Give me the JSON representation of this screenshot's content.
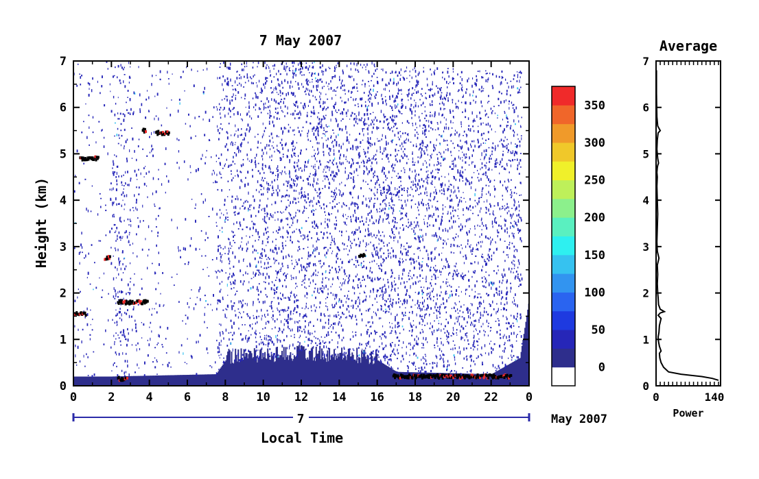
{
  "chart_data": [
    {
      "type": "heatmap",
      "title": "7 May 2007",
      "xlabel": "Local Time",
      "ylabel": "Height (km)",
      "x_ticks": [
        "0",
        "2",
        "4",
        "6",
        "8",
        "10",
        "12",
        "14",
        "16",
        "18",
        "20",
        "22",
        "0"
      ],
      "x_range_hours": [
        0,
        24
      ],
      "y_ticks": [
        "0",
        "1",
        "2",
        "3",
        "4",
        "5",
        "6",
        "7"
      ],
      "ylim": [
        0,
        7
      ],
      "day_label": "7",
      "month_label": "May 2007",
      "colorbar": {
        "ticks": [
          "0",
          "50",
          "100",
          "150",
          "200",
          "250",
          "300",
          "350"
        ],
        "range": [
          -25,
          375
        ],
        "colors": [
          "#ffffff",
          "#2e2e8c",
          "#2626b8",
          "#1e3ae0",
          "#2a64f0",
          "#3294f0",
          "#36c2f0",
          "#2ef0f0",
          "#5af0c0",
          "#8cf08c",
          "#bef05a",
          "#f0f02a",
          "#f0c82a",
          "#f09a2a",
          "#f0662a",
          "#f02a2a"
        ]
      },
      "features": {
        "boundary_layer_top_km": [
          {
            "t": 0.0,
            "h": 0.2
          },
          {
            "t": 2.0,
            "h": 0.2
          },
          {
            "t": 7.5,
            "h": 0.25
          },
          {
            "t": 8.0,
            "h": 0.55
          },
          {
            "t": 12.0,
            "h": 0.65
          },
          {
            "t": 16.0,
            "h": 0.55
          },
          {
            "t": 17.0,
            "h": 0.3
          },
          {
            "t": 22.0,
            "h": 0.25
          },
          {
            "t": 23.5,
            "h": 0.6
          },
          {
            "t": 24.0,
            "h": 1.9
          }
        ],
        "cloud_layers": [
          {
            "t0": 0.0,
            "t1": 0.6,
            "h": 1.55
          },
          {
            "t0": 0.3,
            "t1": 1.3,
            "h": 4.9
          },
          {
            "t0": 1.6,
            "t1": 1.9,
            "h": 2.75
          },
          {
            "t0": 2.3,
            "t1": 2.8,
            "h": 0.15
          },
          {
            "t0": 2.3,
            "t1": 3.9,
            "h": 1.8
          },
          {
            "t0": 3.6,
            "t1": 3.8,
            "h": 5.5
          },
          {
            "t0": 4.3,
            "t1": 5.0,
            "h": 5.45
          },
          {
            "t0": 15.0,
            "t1": 15.3,
            "h": 2.8
          },
          {
            "t0": 16.8,
            "t1": 23.0,
            "h": 0.2
          }
        ]
      }
    },
    {
      "type": "line",
      "title": "Average",
      "xlabel": "Power",
      "ylabel": "",
      "x_ticks": [
        "0",
        "140"
      ],
      "xlim": [
        0,
        155
      ],
      "ylim": [
        0,
        7
      ],
      "y_ticks": [
        "0",
        "1",
        "2",
        "3",
        "4",
        "5",
        "6",
        "7"
      ],
      "x": [
        150,
        135,
        110,
        60,
        30,
        18,
        12,
        9,
        8,
        12,
        8,
        6,
        5,
        7,
        8,
        12,
        5,
        10,
        20,
        10,
        6,
        5,
        4,
        3,
        4,
        3,
        7,
        3,
        2,
        3,
        4,
        3,
        2,
        3,
        2,
        3,
        4,
        6,
        4,
        2,
        3,
        5,
        10,
        4,
        2,
        1,
        1
      ],
      "y": [
        0.12,
        0.16,
        0.2,
        0.25,
        0.3,
        0.4,
        0.5,
        0.6,
        0.7,
        0.75,
        0.85,
        0.95,
        1.05,
        1.15,
        1.3,
        1.45,
        1.52,
        1.57,
        1.6,
        1.65,
        1.75,
        1.9,
        2.0,
        2.2,
        2.4,
        2.6,
        2.75,
        2.9,
        3.1,
        3.4,
        3.7,
        4.0,
        4.3,
        4.5,
        4.6,
        4.7,
        4.75,
        4.8,
        4.9,
        5.1,
        5.3,
        5.45,
        5.5,
        5.6,
        5.8,
        6.3,
        6.8
      ]
    }
  ]
}
